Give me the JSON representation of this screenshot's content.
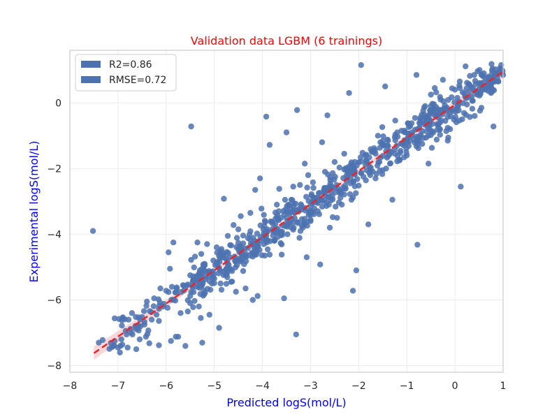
{
  "chart_data": {
    "type": "scatter",
    "title": "Validation data LGBM (6 trainings)",
    "title_color": "#ff0000",
    "xlabel": "Predicted logS(mol/L)",
    "ylabel": "Experimental logS(mol/L)",
    "label_color": "#0000ff",
    "xlim": [
      -8,
      1
    ],
    "ylim": [
      -8.2,
      1.6
    ],
    "xticks": [
      "−8",
      "−7",
      "−6",
      "−5",
      "−4",
      "−3",
      "−2",
      "−1",
      "0",
      "1"
    ],
    "yticks": [
      "−8",
      "−6",
      "−4",
      "−2",
      "0"
    ],
    "grid": true,
    "legend_position": "upper-left",
    "legend": [
      {
        "label": "R2=0.86",
        "color": "#4c72b0"
      },
      {
        "label": "RMSE=0.72",
        "color": "#4c72b0"
      }
    ],
    "point_color": "#4c72b0",
    "fit_line": {
      "color": "#e8252a",
      "style": "dashed",
      "x": [
        -7.5,
        1.0
      ],
      "y": [
        -7.62,
        0.95
      ],
      "band_color": "#f4a4a8"
    },
    "point_count": 900,
    "points": [
      [
        -7.52,
        -3.9
      ],
      [
        -7.4,
        -7.3
      ],
      [
        -7.32,
        -7.22
      ],
      [
        -6.98,
        -6.58
      ],
      [
        -6.95,
        -7.4
      ],
      [
        -6.9,
        -6.55
      ],
      [
        -6.82,
        -7.05
      ],
      [
        -6.78,
        -6.6
      ],
      [
        -6.7,
        -7.05
      ],
      [
        -6.62,
        -7.5
      ],
      [
        -6.55,
        -7.2
      ],
      [
        -6.5,
        -6.52
      ],
      [
        -6.45,
        -6.75
      ],
      [
        -6.4,
        -6.05
      ],
      [
        -6.35,
        -7.32
      ],
      [
        -6.3,
        -6.6
      ],
      [
        -6.25,
        -5.95
      ],
      [
        -6.2,
        -6.45
      ],
      [
        -6.15,
        -7.38
      ],
      [
        -6.12,
        -5.65
      ],
      [
        -6.05,
        -6.12
      ],
      [
        -6.0,
        -5.72
      ],
      [
        -5.95,
        -4.55
      ],
      [
        -5.92,
        -5.05
      ],
      [
        -5.9,
        -7.25
      ],
      [
        -5.85,
        -4.25
      ],
      [
        -5.8,
        -7.12
      ],
      [
        -5.75,
        -7.12
      ],
      [
        -5.7,
        -6.4
      ],
      [
        -5.65,
        -5.55
      ],
      [
        -5.6,
        -7.4
      ],
      [
        -5.55,
        -6.35
      ],
      [
        -5.5,
        -6.1
      ],
      [
        -5.48,
        -0.72
      ],
      [
        -5.45,
        -5.62
      ],
      [
        -5.4,
        -4.68
      ],
      [
        -5.35,
        -4.25
      ],
      [
        -5.32,
        -6.2
      ],
      [
        -5.28,
        -6.55
      ],
      [
        -5.25,
        -7.3
      ],
      [
        -5.2,
        -4.9
      ],
      [
        -5.15,
        -4.3
      ],
      [
        -5.1,
        -6.45
      ],
      [
        -5.05,
        -5.5
      ],
      [
        -5.02,
        -4.8
      ],
      [
        -4.95,
        -4.4
      ],
      [
        -4.9,
        -6.85
      ],
      [
        -4.85,
        -4.45
      ],
      [
        -4.8,
        -2.92
      ],
      [
        -4.75,
        -5.2
      ],
      [
        -4.72,
        -4.05
      ],
      [
        -4.65,
        -5.45
      ],
      [
        -4.6,
        -3.72
      ],
      [
        -4.55,
        -5.75
      ],
      [
        -4.5,
        -3.85
      ],
      [
        -4.45,
        -3.45
      ],
      [
        -4.4,
        -5.12
      ],
      [
        -4.35,
        -5.65
      ],
      [
        -4.3,
        -4.12
      ],
      [
        -4.25,
        -3.35
      ],
      [
        -4.2,
        -6.0
      ],
      [
        -4.15,
        -2.65
      ],
      [
        -4.1,
        -5.88
      ],
      [
        -4.05,
        -2.3
      ],
      [
        -4.02,
        -3.22
      ],
      [
        -3.95,
        -4.65
      ],
      [
        -3.92,
        -0.42
      ],
      [
        -3.85,
        -1.28
      ],
      [
        -3.8,
        -3.62
      ],
      [
        -3.75,
        -4.2
      ],
      [
        -3.7,
        -3.1
      ],
      [
        -3.65,
        -2.62
      ],
      [
        -3.6,
        -4.62
      ],
      [
        -3.55,
        -5.95
      ],
      [
        -3.5,
        -0.9
      ],
      [
        -3.45,
        -3.12
      ],
      [
        -3.4,
        -2.95
      ],
      [
        -3.35,
        -3.8
      ],
      [
        -3.3,
        -7.05
      ],
      [
        -3.28,
        -0.22
      ],
      [
        -3.22,
        -2.5
      ],
      [
        -3.18,
        -3.75
      ],
      [
        -3.12,
        -1.85
      ],
      [
        -3.08,
        -4.7
      ],
      [
        -3.05,
        -2.2
      ],
      [
        -3.0,
        -3.6
      ],
      [
        -2.95,
        -2.42
      ],
      [
        -2.9,
        -3.02
      ],
      [
        -2.85,
        -3.3
      ],
      [
        -2.8,
        -4.92
      ],
      [
        -2.76,
        -1.2
      ],
      [
        -2.7,
        -2.1
      ],
      [
        -2.65,
        -0.38
      ],
      [
        -2.6,
        -3.8
      ],
      [
        -2.55,
        -2.85
      ],
      [
        -2.5,
        -1.8
      ],
      [
        -2.45,
        -3.5
      ],
      [
        -2.4,
        -2.7
      ],
      [
        -2.35,
        -3.1
      ],
      [
        -2.3,
        -1.55
      ],
      [
        -2.25,
        -2.2
      ],
      [
        -2.2,
        0.3
      ],
      [
        -2.15,
        -2.95
      ],
      [
        -2.12,
        -5.72
      ],
      [
        -2.08,
        -1.8
      ],
      [
        -2.05,
        -5.1
      ],
      [
        -2.0,
        -2.52
      ],
      [
        -1.95,
        1.15
      ],
      [
        -1.9,
        -2.25
      ],
      [
        -1.85,
        -1.75
      ],
      [
        -1.8,
        -3.7
      ],
      [
        -1.75,
        -2.05
      ],
      [
        -1.7,
        -1.5
      ],
      [
        -1.65,
        -2.3
      ],
      [
        -1.6,
        -1.0
      ],
      [
        -1.55,
        -1.2
      ],
      [
        -1.5,
        -2.05
      ],
      [
        -1.45,
        0.5
      ],
      [
        -1.4,
        -1.3
      ],
      [
        -1.35,
        -1.85
      ],
      [
        -1.3,
        -2.95
      ],
      [
        -1.25,
        -1.55
      ],
      [
        -1.2,
        -0.9
      ],
      [
        -1.15,
        -1.75
      ],
      [
        -1.1,
        -1.25
      ],
      [
        -1.05,
        -0.85
      ],
      [
        -1.0,
        -1.6
      ],
      [
        -0.95,
        -1.0
      ],
      [
        -0.9,
        -0.62
      ],
      [
        -0.85,
        -1.1
      ],
      [
        -0.8,
        0.85
      ],
      [
        -0.78,
        -4.32
      ],
      [
        -0.72,
        -0.45
      ],
      [
        -0.68,
        -1.25
      ],
      [
        -0.62,
        -0.1
      ],
      [
        -0.58,
        -0.5
      ],
      [
        -0.55,
        -1.85
      ],
      [
        -0.5,
        0.25
      ],
      [
        -0.45,
        -0.9
      ],
      [
        -0.42,
        0.45
      ],
      [
        -0.35,
        -0.3
      ],
      [
        -0.3,
        0.1
      ],
      [
        -0.25,
        0.7
      ],
      [
        -0.2,
        -0.55
      ],
      [
        -0.15,
        -1.15
      ],
      [
        -0.1,
        -0.8
      ],
      [
        -0.05,
        -0.25
      ],
      [
        0.0,
        0.4
      ],
      [
        0.05,
        0.15
      ],
      [
        0.1,
        0.65
      ],
      [
        0.12,
        -2.55
      ],
      [
        0.15,
        -0.5
      ],
      [
        0.2,
        0.28
      ],
      [
        0.25,
        -0.05
      ],
      [
        0.3,
        0.55
      ],
      [
        0.35,
        0.2
      ],
      [
        0.4,
        0.85
      ],
      [
        0.45,
        0.35
      ],
      [
        0.5,
        0.6
      ],
      [
        0.55,
        -0.15
      ],
      [
        0.6,
        0.9
      ],
      [
        0.65,
        0.45
      ],
      [
        0.7,
        0.75
      ],
      [
        0.75,
        0.3
      ],
      [
        0.8,
        -0.72
      ],
      [
        0.85,
        0.9
      ],
      [
        0.9,
        0.65
      ],
      [
        0.95,
        1.02
      ],
      [
        1.0,
        0.85
      ],
      [
        0.68,
        0.55
      ]
    ]
  }
}
